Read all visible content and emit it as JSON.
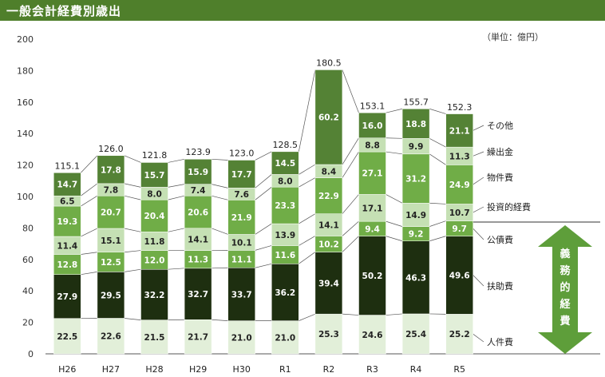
{
  "header": {
    "title": "一般会計経費別歳出"
  },
  "unit": "（単位：億円）",
  "colors": {
    "人件費": "#e2efd9",
    "扶助費": "#1e2f10",
    "公債費": "#70ad47",
    "投資的経費": "#c5e0b4",
    "物件費": "#70ad47",
    "繰出金": "#c5e0b4",
    "その他": "#548235"
  },
  "bracket_label": [
    "義",
    "務",
    "的",
    "経",
    "費"
  ],
  "chart_data": {
    "type": "bar",
    "stacked": true,
    "categories": [
      "H26",
      "H27",
      "H28",
      "H29",
      "H30",
      "R1",
      "R2",
      "R3",
      "R4",
      "R5"
    ],
    "series": [
      {
        "name": "人件費",
        "values": [
          22.5,
          22.6,
          21.5,
          21.7,
          21.0,
          21.0,
          25.3,
          24.6,
          25.4,
          25.2
        ]
      },
      {
        "name": "扶助費",
        "values": [
          27.9,
          29.5,
          32.2,
          32.7,
          33.7,
          36.2,
          39.4,
          50.2,
          46.3,
          49.6
        ]
      },
      {
        "name": "公債費",
        "values": [
          12.8,
          12.5,
          12.0,
          11.3,
          11.1,
          11.6,
          10.2,
          9.4,
          9.2,
          9.7
        ]
      },
      {
        "name": "投資的経費",
        "values": [
          11.4,
          15.1,
          11.8,
          14.1,
          10.1,
          13.9,
          14.1,
          17.1,
          14.9,
          10.7
        ]
      },
      {
        "name": "物件費",
        "values": [
          19.3,
          20.7,
          20.4,
          20.6,
          21.9,
          23.3,
          22.9,
          27.1,
          31.2,
          24.9
        ]
      },
      {
        "name": "繰出金",
        "values": [
          6.5,
          7.8,
          8.0,
          7.4,
          7.6,
          8.0,
          8.4,
          8.8,
          9.9,
          11.3
        ]
      },
      {
        "name": "その他",
        "values": [
          14.7,
          17.8,
          15.7,
          15.9,
          17.7,
          14.5,
          60.2,
          16.0,
          18.8,
          21.1
        ]
      }
    ],
    "totals": [
      115.1,
      126.0,
      121.8,
      123.9,
      123.0,
      128.5,
      180.5,
      153.1,
      155.7,
      152.3
    ],
    "ylim": [
      0,
      200
    ],
    "yticks": [
      0,
      20,
      40,
      60,
      80,
      100,
      120,
      140,
      160,
      180,
      200
    ],
    "legend": "right"
  }
}
